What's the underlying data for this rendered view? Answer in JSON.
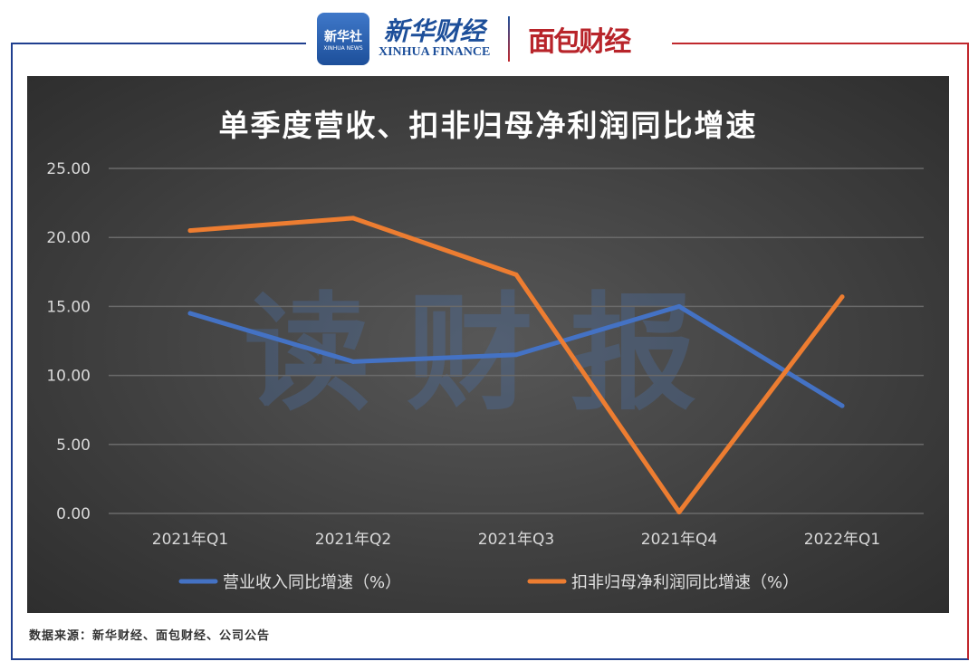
{
  "header": {
    "xinhua_badge": "新华社",
    "xinhua_badge_en": "XINHUA NEWS",
    "xinhua_finance_cn": "新华财经",
    "xinhua_finance_en": "XINHUA FINANCE",
    "mianbao": "面包财经"
  },
  "watermark": "读财报",
  "source": "数据来源：新华财经、面包财经、公司公告",
  "chart_data": {
    "type": "line",
    "title": "单季度营收、扣非归母净利润同比增速",
    "categories": [
      "2021年Q1",
      "2021年Q2",
      "2021年Q3",
      "2021年Q4",
      "2022年Q1"
    ],
    "ylim": [
      0,
      25
    ],
    "yticks": [
      "0.00",
      "5.00",
      "10.00",
      "15.00",
      "20.00",
      "25.00"
    ],
    "grid": true,
    "legend_position": "bottom",
    "series": [
      {
        "name": "营业收入同比增速（%）",
        "color": "#4472c4",
        "values": [
          14.5,
          11.0,
          11.5,
          15.0,
          7.8
        ]
      },
      {
        "name": "扣非归母净利润同比增速（%）",
        "color": "#ed7d31",
        "values": [
          20.5,
          21.4,
          17.3,
          0.1,
          15.7
        ]
      }
    ]
  }
}
